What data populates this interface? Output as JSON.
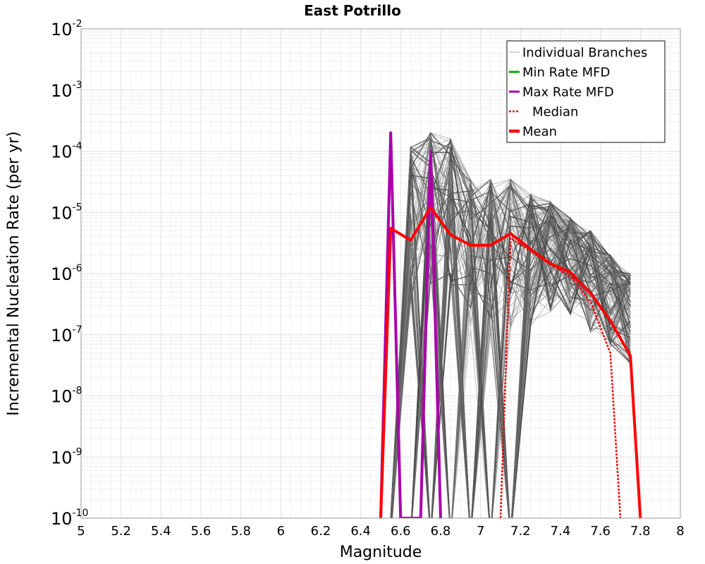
{
  "chart_data": {
    "type": "line",
    "title": "East Potrillo",
    "xlabel": "Magnitude",
    "ylabel": "Incremental Nucleation Rate (per yr)",
    "xlim": [
      5,
      8
    ],
    "ylim": [
      1e-10,
      0.01
    ],
    "y_scale": "log",
    "grid": true,
    "legend_position": "top-right",
    "x_ticks": [
      "5",
      "5.2",
      "5.4",
      "5.6",
      "5.8",
      "6",
      "6.2",
      "6.4",
      "6.6",
      "6.8",
      "7",
      "7.2",
      "7.4",
      "7.6",
      "7.8",
      "8"
    ],
    "y_ticks": [
      {
        "base": "10",
        "exp": "-2"
      },
      {
        "base": "10",
        "exp": "-3"
      },
      {
        "base": "10",
        "exp": "-4"
      },
      {
        "base": "10",
        "exp": "-5"
      },
      {
        "base": "10",
        "exp": "-6"
      },
      {
        "base": "10",
        "exp": "-7"
      },
      {
        "base": "10",
        "exp": "-8"
      },
      {
        "base": "10",
        "exp": "-9"
      },
      {
        "base": "10",
        "exp": "-10"
      }
    ],
    "legend": [
      {
        "label": "Individual Branches",
        "color": "#b0b0b0",
        "style": "thin"
      },
      {
        "label": "Min Rate MFD",
        "color": "#00aa00",
        "style": "solid"
      },
      {
        "label": "Max Rate MFD",
        "color": "#aa00aa",
        "style": "solid"
      },
      {
        "label": "Median",
        "color": "#ee0000",
        "style": "dotted"
      },
      {
        "label": "Mean",
        "color": "#ff0000",
        "style": "thick"
      }
    ],
    "series": [
      {
        "name": "Mean",
        "color": "#ff0000",
        "x": [
          6.5,
          6.55,
          6.65,
          6.75,
          6.85,
          6.95,
          7.05,
          7.15,
          7.25,
          7.35,
          7.45,
          7.55,
          7.65,
          7.75,
          7.8
        ],
        "y": [
          1e-10,
          5.5e-06,
          3.5e-06,
          1.2e-05,
          4.3e-06,
          2.9e-06,
          2.9e-06,
          4.5e-06,
          2.5e-06,
          1.45e-06,
          1.05e-06,
          4.8e-07,
          1.7e-07,
          4.5e-08,
          1e-10
        ]
      },
      {
        "name": "Median",
        "color": "#ee0000",
        "x": [
          7.1,
          7.15,
          7.25,
          7.35,
          7.45,
          7.55,
          7.65,
          7.7
        ],
        "y": [
          1e-10,
          3.8e-06,
          2.3e-06,
          1.4e-06,
          9e-07,
          3.5e-07,
          5e-08,
          1e-10
        ]
      },
      {
        "name": "Max Rate MFD",
        "color": "#aa00aa",
        "x": [
          6.5,
          6.55,
          6.6,
          6.7,
          6.75,
          6.8
        ],
        "y": [
          1e-10,
          0.0002,
          1e-10,
          1e-10,
          0.0001,
          1e-10
        ]
      },
      {
        "name": "Individual Branches",
        "color": "#555555",
        "x": [
          6.55,
          6.65,
          6.75,
          6.85,
          6.95,
          7.05,
          7.15,
          7.25,
          7.35,
          7.45,
          7.55,
          7.65,
          7.75
        ],
        "y_range_low": [
          1e-10,
          1e-10,
          1e-10,
          1e-10,
          1e-10,
          1e-10,
          1e-10,
          1e-07,
          2e-07,
          2e-07,
          1e-07,
          6e-08,
          3e-08
        ],
        "y_range_high": [
          1e-10,
          0.00012,
          0.0002,
          0.00016,
          3.5e-05,
          3.5e-05,
          3.5e-05,
          2e-05,
          1.5e-05,
          8e-06,
          5e-06,
          2e-06,
          1e-06
        ]
      }
    ]
  }
}
